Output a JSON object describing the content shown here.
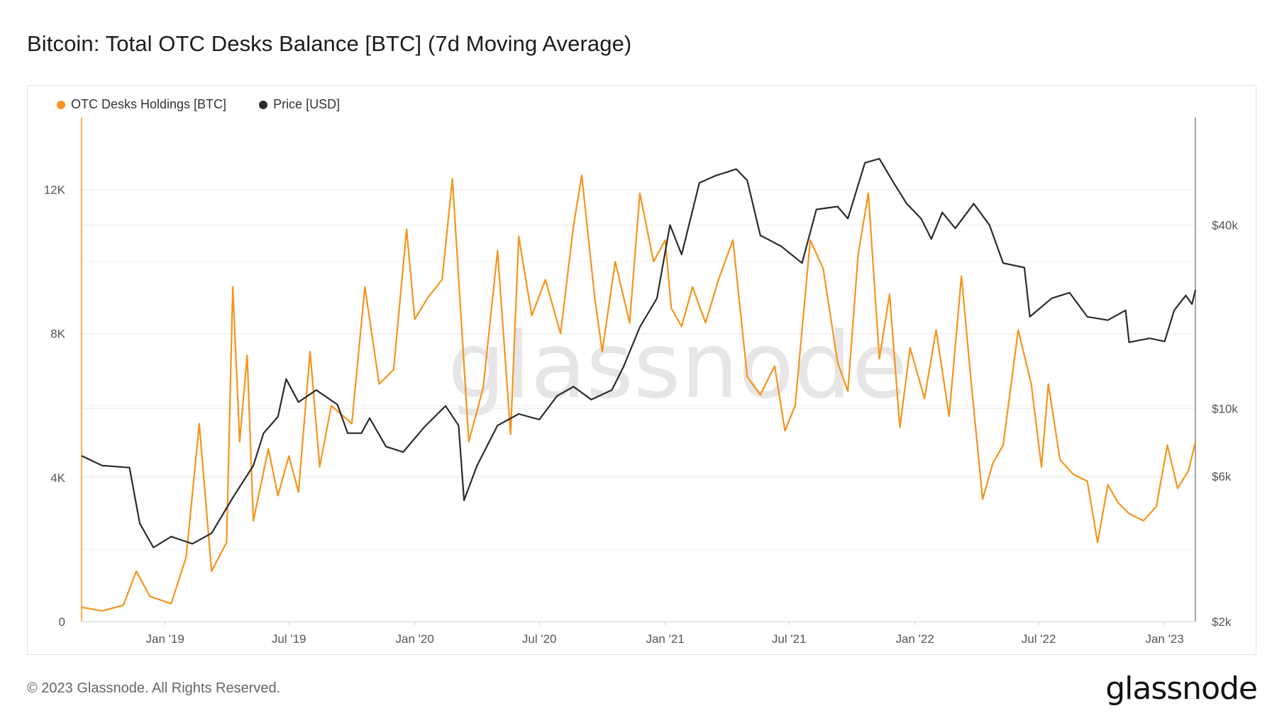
{
  "header": {
    "title": "Bitcoin: Total OTC Desks Balance [BTC] (7d Moving Average)"
  },
  "footer": {
    "copyright": "© 2023 Glassnode. All Rights Reserved.",
    "brand": "glassnode"
  },
  "watermark": "glassnode",
  "colors": {
    "holdings": "#f7931a",
    "price": "#2b2b2b",
    "grid": "#ececec"
  },
  "chart_data": {
    "type": "line",
    "title": "Bitcoin: Total OTC Desks Balance [BTC] (7d Moving Average)",
    "x_range": [
      "2018-09-01",
      "2023-02-15"
    ],
    "x_ticks": [
      {
        "date": "2019-01-01",
        "label": "Jan '19"
      },
      {
        "date": "2019-07-01",
        "label": "Jul '19"
      },
      {
        "date": "2020-01-01",
        "label": "Jan '20"
      },
      {
        "date": "2020-07-01",
        "label": "Jul '20"
      },
      {
        "date": "2021-01-01",
        "label": "Jan '21"
      },
      {
        "date": "2021-07-01",
        "label": "Jul '21"
      },
      {
        "date": "2022-01-01",
        "label": "Jan '22"
      },
      {
        "date": "2022-07-01",
        "label": "Jul '22"
      },
      {
        "date": "2023-01-01",
        "label": "Jan '23"
      }
    ],
    "y_left": {
      "min": 0,
      "max": 14000,
      "ticks": [
        {
          "value": 0,
          "label": "0"
        },
        {
          "value": 4000,
          "label": "4K"
        },
        {
          "value": 8000,
          "label": "8K"
        },
        {
          "value": 12000,
          "label": "12K"
        }
      ]
    },
    "y_right": {
      "scale": "log",
      "min": 2000,
      "max": 90000,
      "ticks": [
        {
          "value": 2000,
          "label": "$2k"
        },
        {
          "value": 6000,
          "label": "$6k"
        },
        {
          "value": 10000,
          "label": "$10k"
        },
        {
          "value": 40000,
          "label": "$40k"
        }
      ]
    },
    "legend_position": "top-left",
    "grid": true,
    "series": [
      {
        "name": "OTC Desks Holdings [BTC]",
        "axis": "left",
        "color": "#f7931a",
        "points": [
          [
            "2018-09-01",
            400
          ],
          [
            "2018-10-01",
            300
          ],
          [
            "2018-11-01",
            450
          ],
          [
            "2018-11-20",
            1400
          ],
          [
            "2018-12-10",
            700
          ],
          [
            "2019-01-10",
            500
          ],
          [
            "2019-02-01",
            1800
          ],
          [
            "2019-02-20",
            5500
          ],
          [
            "2019-03-10",
            1400
          ],
          [
            "2019-04-01",
            2200
          ],
          [
            "2019-04-10",
            9300
          ],
          [
            "2019-04-20",
            5000
          ],
          [
            "2019-05-01",
            7400
          ],
          [
            "2019-05-10",
            2800
          ],
          [
            "2019-06-01",
            4800
          ],
          [
            "2019-06-15",
            3500
          ],
          [
            "2019-07-01",
            4600
          ],
          [
            "2019-07-15",
            3600
          ],
          [
            "2019-08-01",
            7500
          ],
          [
            "2019-08-15",
            4300
          ],
          [
            "2019-09-01",
            6000
          ],
          [
            "2019-10-01",
            5500
          ],
          [
            "2019-10-20",
            9300
          ],
          [
            "2019-11-10",
            6600
          ],
          [
            "2019-12-01",
            7000
          ],
          [
            "2019-12-20",
            10900
          ],
          [
            "2020-01-01",
            8400
          ],
          [
            "2020-01-20",
            9000
          ],
          [
            "2020-02-10",
            9500
          ],
          [
            "2020-02-25",
            12300
          ],
          [
            "2020-03-20",
            5000
          ],
          [
            "2020-04-10",
            6500
          ],
          [
            "2020-05-01",
            10300
          ],
          [
            "2020-05-20",
            5200
          ],
          [
            "2020-06-01",
            10700
          ],
          [
            "2020-06-20",
            8500
          ],
          [
            "2020-07-10",
            9500
          ],
          [
            "2020-08-01",
            8000
          ],
          [
            "2020-08-20",
            11000
          ],
          [
            "2020-09-01",
            12400
          ],
          [
            "2020-09-20",
            9000
          ],
          [
            "2020-10-01",
            7500
          ],
          [
            "2020-10-20",
            10000
          ],
          [
            "2020-11-10",
            8300
          ],
          [
            "2020-11-25",
            11900
          ],
          [
            "2020-12-15",
            10000
          ],
          [
            "2021-01-01",
            10600
          ],
          [
            "2021-01-10",
            8700
          ],
          [
            "2021-01-25",
            8200
          ],
          [
            "2021-02-10",
            9300
          ],
          [
            "2021-03-01",
            8300
          ],
          [
            "2021-03-20",
            9500
          ],
          [
            "2021-04-10",
            10600
          ],
          [
            "2021-05-01",
            6800
          ],
          [
            "2021-05-20",
            6300
          ],
          [
            "2021-06-10",
            7100
          ],
          [
            "2021-06-25",
            5300
          ],
          [
            "2021-07-10",
            6000
          ],
          [
            "2021-08-01",
            10600
          ],
          [
            "2021-08-20",
            9800
          ],
          [
            "2021-09-10",
            7200
          ],
          [
            "2021-09-25",
            6400
          ],
          [
            "2021-10-10",
            10200
          ],
          [
            "2021-10-25",
            11900
          ],
          [
            "2021-11-10",
            7300
          ],
          [
            "2021-11-25",
            9100
          ],
          [
            "2021-12-10",
            5400
          ],
          [
            "2021-12-25",
            7600
          ],
          [
            "2022-01-15",
            6200
          ],
          [
            "2022-02-01",
            8100
          ],
          [
            "2022-02-20",
            5700
          ],
          [
            "2022-03-10",
            9600
          ],
          [
            "2022-03-25",
            6500
          ],
          [
            "2022-04-10",
            3400
          ],
          [
            "2022-04-25",
            4400
          ],
          [
            "2022-05-10",
            4900
          ],
          [
            "2022-06-01",
            8100
          ],
          [
            "2022-06-20",
            6600
          ],
          [
            "2022-07-05",
            4300
          ],
          [
            "2022-07-15",
            6600
          ],
          [
            "2022-08-01",
            4500
          ],
          [
            "2022-08-20",
            4100
          ],
          [
            "2022-09-10",
            3900
          ],
          [
            "2022-09-25",
            2200
          ],
          [
            "2022-10-10",
            3800
          ],
          [
            "2022-10-25",
            3300
          ],
          [
            "2022-11-10",
            3000
          ],
          [
            "2022-12-01",
            2800
          ],
          [
            "2022-12-20",
            3200
          ],
          [
            "2023-01-05",
            4900
          ],
          [
            "2023-01-20",
            3700
          ],
          [
            "2023-02-05",
            4200
          ],
          [
            "2023-02-15",
            5000
          ]
        ]
      },
      {
        "name": "Price [USD]",
        "axis": "right",
        "color": "#2b2b2b",
        "points": [
          [
            "2018-09-01",
            7000
          ],
          [
            "2018-10-01",
            6500
          ],
          [
            "2018-11-10",
            6400
          ],
          [
            "2018-11-25",
            4200
          ],
          [
            "2018-12-15",
            3500
          ],
          [
            "2019-01-10",
            3800
          ],
          [
            "2019-02-10",
            3600
          ],
          [
            "2019-03-10",
            3900
          ],
          [
            "2019-04-10",
            5100
          ],
          [
            "2019-05-10",
            6500
          ],
          [
            "2019-05-25",
            8300
          ],
          [
            "2019-06-15",
            9400
          ],
          [
            "2019-06-27",
            12500
          ],
          [
            "2019-07-15",
            10500
          ],
          [
            "2019-08-10",
            11500
          ],
          [
            "2019-09-10",
            10300
          ],
          [
            "2019-09-25",
            8300
          ],
          [
            "2019-10-15",
            8300
          ],
          [
            "2019-10-27",
            9300
          ],
          [
            "2019-11-20",
            7500
          ],
          [
            "2019-12-15",
            7200
          ],
          [
            "2020-01-15",
            8700
          ],
          [
            "2020-02-15",
            10200
          ],
          [
            "2020-03-05",
            8800
          ],
          [
            "2020-03-13",
            5000
          ],
          [
            "2020-04-01",
            6500
          ],
          [
            "2020-05-01",
            8800
          ],
          [
            "2020-06-01",
            9600
          ],
          [
            "2020-07-01",
            9200
          ],
          [
            "2020-07-27",
            11000
          ],
          [
            "2020-08-20",
            11800
          ],
          [
            "2020-09-15",
            10700
          ],
          [
            "2020-10-15",
            11500
          ],
          [
            "2020-11-01",
            13700
          ],
          [
            "2020-11-25",
            18500
          ],
          [
            "2020-12-20",
            23000
          ],
          [
            "2021-01-08",
            40000
          ],
          [
            "2021-01-25",
            32000
          ],
          [
            "2021-02-20",
            55000
          ],
          [
            "2021-03-15",
            58000
          ],
          [
            "2021-04-15",
            61000
          ],
          [
            "2021-05-01",
            56000
          ],
          [
            "2021-05-20",
            37000
          ],
          [
            "2021-06-20",
            34000
          ],
          [
            "2021-07-20",
            30000
          ],
          [
            "2021-08-10",
            45000
          ],
          [
            "2021-09-10",
            46000
          ],
          [
            "2021-09-25",
            42000
          ],
          [
            "2021-10-20",
            64000
          ],
          [
            "2021-11-10",
            66000
          ],
          [
            "2021-12-01",
            55000
          ],
          [
            "2021-12-20",
            47000
          ],
          [
            "2022-01-10",
            42000
          ],
          [
            "2022-01-25",
            36000
          ],
          [
            "2022-02-10",
            44000
          ],
          [
            "2022-03-01",
            39000
          ],
          [
            "2022-03-28",
            47000
          ],
          [
            "2022-04-20",
            40000
          ],
          [
            "2022-05-10",
            30000
          ],
          [
            "2022-06-10",
            29000
          ],
          [
            "2022-06-18",
            20000
          ],
          [
            "2022-07-20",
            23000
          ],
          [
            "2022-08-15",
            24000
          ],
          [
            "2022-09-10",
            20000
          ],
          [
            "2022-10-10",
            19500
          ],
          [
            "2022-11-05",
            21000
          ],
          [
            "2022-11-10",
            16500
          ],
          [
            "2022-12-10",
            17000
          ],
          [
            "2023-01-01",
            16600
          ],
          [
            "2023-01-15",
            21000
          ],
          [
            "2023-02-01",
            23500
          ],
          [
            "2023-02-10",
            22000
          ],
          [
            "2023-02-15",
            24500
          ]
        ]
      }
    ]
  }
}
